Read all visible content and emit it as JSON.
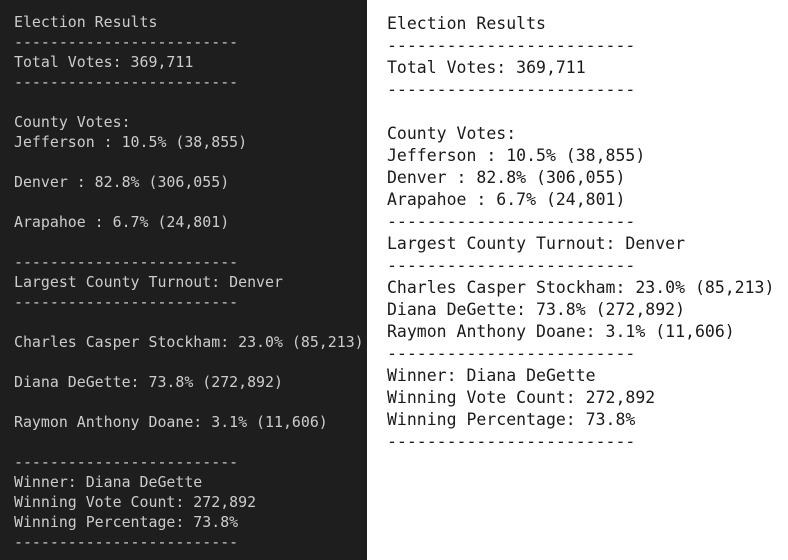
{
  "terminal": {
    "lines": [
      "Election Results",
      "-------------------------",
      "Total Votes: 369,711",
      "-------------------------",
      "County Votes:",
      "Jefferson : 10.5% (38,855)",
      "Denver : 82.8% (306,055)",
      "Arapahoe : 6.7% (24,801)",
      "-------------------------",
      "Largest County Turnout: Denver",
      "-------------------------",
      "Charles Casper Stockham: 23.0% (85,213)",
      "Diana DeGette: 73.8% (272,892)",
      "Raymon Anthony Doane: 3.1% (11,606)",
      "-------------------------",
      "Winner: Diana DeGette",
      "Winning Vote Count: 272,892",
      "Winning Percentage: 73.8%",
      "-------------------------"
    ]
  },
  "text_file": {
    "lines": [
      "Election Results",
      "-------------------------",
      "Total Votes: 369,711",
      "-------------------------",
      "County Votes:",
      "Jefferson : 10.5% (38,855)",
      "Denver : 82.8% (306,055)",
      "Arapahoe : 6.7% (24,801)",
      "-------------------------",
      "Largest County Turnout: Denver",
      "-------------------------",
      "Charles Casper Stockham: 23.0% (85,213)",
      "Diana DeGette: 73.8% (272,892)",
      "Raymon Anthony Doane: 3.1% (11,606)",
      "-------------------------",
      "Winner: Diana DeGette",
      "Winning Vote Count: 272,892",
      "Winning Percentage: 73.8%",
      "-------------------------"
    ]
  }
}
